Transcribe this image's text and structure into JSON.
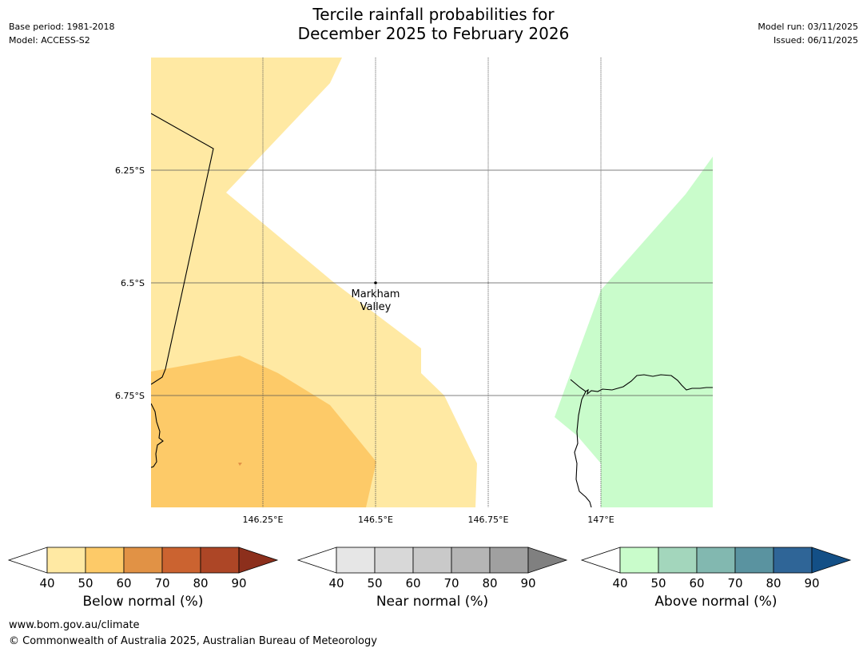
{
  "header": {
    "title_line1": "Tercile rainfall probabilities for",
    "title_line2": "December 2025 to February 2026",
    "base_period": "Base period: 1981-2018",
    "model": "Model: ACCESS-S2",
    "model_run": "Model run: 03/11/2025",
    "issued": "Issued: 06/11/2025"
  },
  "map": {
    "place_label_line1": "Markham",
    "place_label_line2": "Valley",
    "lat_labels": [
      "6.25°S",
      "6.5°S",
      "6.75°S"
    ],
    "lon_labels": [
      "146.25°E",
      "146.5°E",
      "146.75°E",
      "147°E"
    ]
  },
  "colorbars": [
    {
      "title": "Below normal (%)",
      "ticks": [
        "40",
        "50",
        "60",
        "70",
        "80",
        "90"
      ],
      "colors": [
        "#ffe9a3",
        "#fdca68",
        "#e19245",
        "#cb6330",
        "#ad4626"
      ],
      "low_color": "#ffffff",
      "high_color": "#8c2f1c"
    },
    {
      "title": "Near normal (%)",
      "ticks": [
        "40",
        "50",
        "60",
        "70",
        "80",
        "90"
      ],
      "colors": [
        "#e6e6e6",
        "#d8d8d8",
        "#c9c9c9",
        "#b5b5b5",
        "#a0a0a0"
      ],
      "low_color": "#ffffff",
      "high_color": "#808080"
    },
    {
      "title": "Above normal (%)",
      "ticks": [
        "40",
        "50",
        "60",
        "70",
        "80",
        "90"
      ],
      "colors": [
        "#c9fccb",
        "#a3d6bc",
        "#82b8b0",
        "#5a93a0",
        "#2f6597"
      ],
      "low_color": "#ffffff",
      "high_color": "#134f86"
    }
  ],
  "footer": {
    "url": "www.bom.gov.au/climate",
    "copyright": "© Commonwealth of Australia 2025, Australian Bureau of Meteorology"
  }
}
